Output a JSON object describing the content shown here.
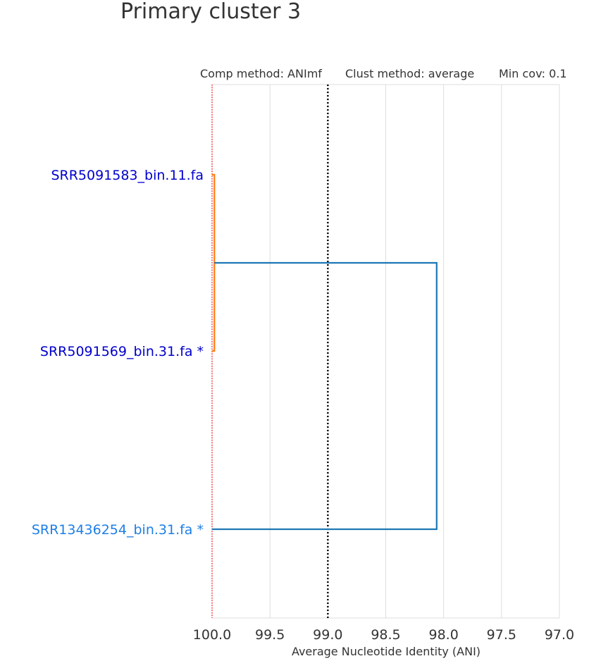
{
  "chart_data": {
    "type": "dendrogram",
    "title": "Primary cluster 3",
    "annotations": {
      "comp_method": "Comp method: ANImf",
      "clust_method": "Clust method: average",
      "min_cov": "Min cov: 0.1"
    },
    "xlabel": "Average Nucleotide Identity (ANI)",
    "xlim": [
      100.0,
      97.0
    ],
    "x_inverted": true,
    "x_ticks": [
      100.0,
      99.5,
      99.0,
      98.5,
      98.0,
      97.5,
      97.0
    ],
    "x_tick_labels": [
      "100.0",
      "99.5",
      "99.0",
      "98.5",
      "98.0",
      "97.5",
      "97.0"
    ],
    "grid": true,
    "leaves": [
      {
        "label": "SRR5091583_bin.11.fa",
        "color": "#0000cd"
      },
      {
        "label": "SRR5091569_bin.31.fa *",
        "color": "#0000cd"
      },
      {
        "label": "SRR13436254_bin.31.fa *",
        "color": "#1e7fe6"
      }
    ],
    "merges": [
      {
        "children": [
          "SRR5091583_bin.11.fa",
          "SRR5091569_bin.31.fa *"
        ],
        "ani": 99.98,
        "color": "#ff7f0e"
      },
      {
        "children": [
          "cluster_0",
          "SRR13436254_bin.31.fa *"
        ],
        "ani": 98.06,
        "color": "#1f77b4"
      }
    ],
    "reference_lines": [
      {
        "ani": 99.0,
        "style": "dotted",
        "color": "#000000"
      },
      {
        "ani": 100.0,
        "style": "dotted",
        "color": "#ff0000"
      }
    ]
  }
}
